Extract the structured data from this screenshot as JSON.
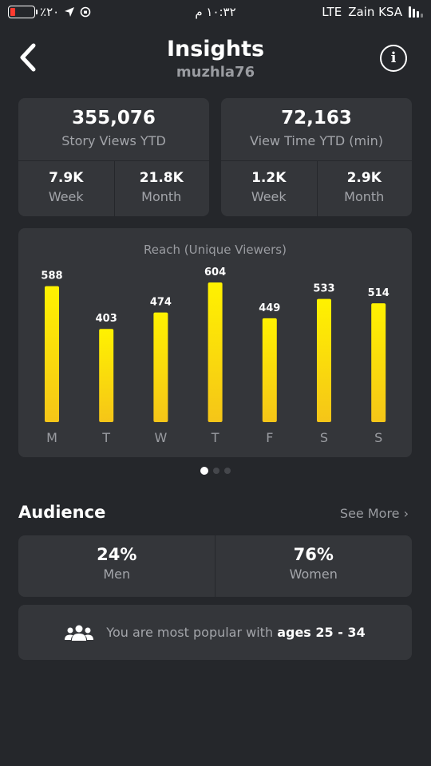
{
  "status_bar": {
    "battery_percent": "٪٢٠",
    "time": "١٠:٣٢ م",
    "network": "LTE",
    "carrier": "Zain KSA",
    "battery_color": "#ff3b30"
  },
  "header": {
    "title": "Insights",
    "username": "muzhla76",
    "back_icon": "chevron-left-icon",
    "info_icon": "info-icon",
    "info_glyph": "i"
  },
  "story_views": {
    "value": "355,076",
    "label": "Story Views YTD",
    "week_value": "7.9K",
    "week_label": "Week",
    "month_value": "21.8K",
    "month_label": "Month"
  },
  "view_time": {
    "value": "72,163",
    "label": "View Time YTD (min)",
    "week_value": "1.2K",
    "week_label": "Week",
    "month_value": "2.9K",
    "month_label": "Month"
  },
  "chart_data": {
    "type": "bar",
    "title": "Reach (Unique Viewers)",
    "categories": [
      "M",
      "T",
      "W",
      "T",
      "F",
      "S",
      "S"
    ],
    "values": [
      588,
      403,
      474,
      604,
      449,
      533,
      514
    ],
    "value_labels": [
      "588",
      "403",
      "474",
      "604",
      "449",
      "533",
      "514"
    ],
    "ylim": [
      0,
      604
    ],
    "grid": false,
    "bar_color_top": "#fff200",
    "bar_color_bottom": "#f5c518"
  },
  "pager": {
    "pages": 3,
    "active": 0
  },
  "audience": {
    "title": "Audience",
    "see_more": "See More ›",
    "men_value": "24%",
    "men_label": "Men",
    "women_value": "76%",
    "women_label": "Women",
    "popular_prefix": "You are most popular with ",
    "popular_bold": "ages 25 - 34",
    "group_icon": "users-group-icon"
  }
}
